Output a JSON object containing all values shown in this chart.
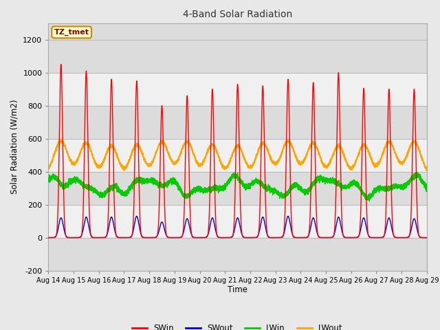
{
  "title": "4-Band Solar Radiation",
  "xlabel": "Time",
  "ylabel": "Solar Radiation (W/m2)",
  "ylim": [
    -200,
    1300
  ],
  "yticks": [
    -200,
    0,
    200,
    400,
    600,
    800,
    1000,
    1200
  ],
  "figure_bg": "#e8e8e8",
  "plot_bg": "#f5f5f5",
  "band_colors": [
    "#dcdcdc",
    "#f0f0f0"
  ],
  "grid_color": "#c8c8c8",
  "xticklabels": [
    "Aug 14",
    "Aug 15",
    "Aug 16",
    "Aug 17",
    "Aug 18",
    "Aug 19",
    "Aug 20",
    "Aug 21",
    "Aug 22",
    "Aug 23",
    "Aug 24",
    "Aug 25",
    "Aug 26",
    "Aug 27",
    "Aug 28",
    "Aug 29"
  ],
  "legend_labels": [
    "SWin",
    "SWout",
    "LWin",
    "LWout"
  ],
  "legend_colors": [
    "#ff0000",
    "#0000cc",
    "#00cc00",
    "#ffa500"
  ],
  "annotation_text": "TZ_tmet",
  "annotation_bg": "#ffffcc",
  "annotation_border": "#cc8800",
  "n_days": 15,
  "pts_per_day": 480,
  "SWin_peaks": [
    1050,
    1010,
    960,
    950,
    800,
    860,
    900,
    930,
    920,
    960,
    940,
    1000,
    905,
    900,
    900
  ],
  "SWout_peaks": [
    120,
    125,
    125,
    130,
    95,
    115,
    120,
    120,
    125,
    130,
    120,
    125,
    120,
    120,
    115
  ],
  "LWin_base": 310,
  "LWout_base": 385,
  "LWout_peak": 570
}
